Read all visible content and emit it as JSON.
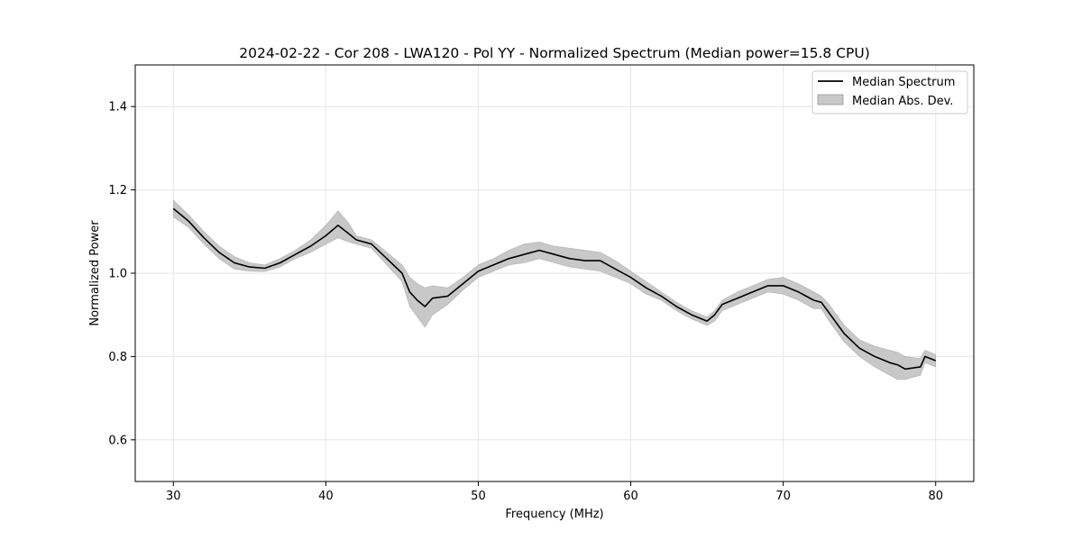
{
  "chart_data": {
    "type": "line",
    "title": "2024-02-22 - Cor 208 - LWA120 - Pol YY - Normalized Spectrum (Median power=15.8 CPU)",
    "xlabel": "Frequency (MHz)",
    "ylabel": "Normalized Power",
    "xlim": [
      27.5,
      82.5
    ],
    "ylim": [
      0.5,
      1.5
    ],
    "xticks": [
      30,
      40,
      50,
      60,
      70,
      80
    ],
    "yticks": [
      0.6,
      0.8,
      1.0,
      1.2,
      1.4
    ],
    "xtick_labels": [
      "30",
      "40",
      "50",
      "60",
      "70",
      "80"
    ],
    "ytick_labels": [
      "0.6",
      "0.8",
      "1.0",
      "1.2",
      "1.4"
    ],
    "grid": true,
    "legend": {
      "position": "top-right",
      "entries": [
        {
          "label": "Median Spectrum",
          "kind": "line",
          "color": "#000000"
        },
        {
          "label": "Median Abs. Dev.",
          "kind": "patch",
          "color": "#c8c8c8"
        }
      ]
    },
    "series": [
      {
        "name": "Median Spectrum",
        "color": "#000000",
        "x": [
          30,
          31,
          32,
          33,
          34,
          35,
          36,
          37,
          38,
          39,
          40,
          40.8,
          41.5,
          42,
          43,
          44,
          45,
          45.5,
          46,
          46.5,
          47,
          48,
          49,
          50,
          51,
          52,
          53,
          54,
          55,
          56,
          57,
          58,
          59,
          60,
          61,
          62,
          63,
          64,
          65,
          65.5,
          66,
          67,
          68,
          69,
          70,
          71,
          72,
          72.5,
          73,
          74,
          75,
          76,
          77,
          77.5,
          78,
          79,
          79.3,
          80
        ],
        "y": [
          1.155,
          1.125,
          1.085,
          1.05,
          1.025,
          1.015,
          1.012,
          1.025,
          1.045,
          1.065,
          1.09,
          1.115,
          1.095,
          1.08,
          1.07,
          1.035,
          1.0,
          0.955,
          0.935,
          0.92,
          0.94,
          0.945,
          0.975,
          1.005,
          1.02,
          1.035,
          1.045,
          1.055,
          1.045,
          1.035,
          1.03,
          1.03,
          1.01,
          0.99,
          0.965,
          0.945,
          0.92,
          0.9,
          0.885,
          0.9,
          0.925,
          0.94,
          0.955,
          0.97,
          0.97,
          0.955,
          0.935,
          0.93,
          0.905,
          0.855,
          0.82,
          0.8,
          0.785,
          0.78,
          0.77,
          0.775,
          0.8,
          0.79
        ]
      }
    ],
    "band": {
      "name": "Median Abs. Dev.",
      "color": "#c8c8c8",
      "upper": [
        1.175,
        1.14,
        1.1,
        1.065,
        1.04,
        1.025,
        1.02,
        1.035,
        1.055,
        1.08,
        1.115,
        1.15,
        1.12,
        1.09,
        1.08,
        1.05,
        1.02,
        0.99,
        0.975,
        0.965,
        0.97,
        0.965,
        0.99,
        1.02,
        1.035,
        1.055,
        1.07,
        1.075,
        1.065,
        1.06,
        1.055,
        1.05,
        1.03,
        1.005,
        0.98,
        0.955,
        0.93,
        0.91,
        0.895,
        0.91,
        0.935,
        0.955,
        0.97,
        0.985,
        0.99,
        0.975,
        0.955,
        0.945,
        0.925,
        0.875,
        0.84,
        0.825,
        0.815,
        0.81,
        0.8,
        0.795,
        0.815,
        0.805
      ],
      "lower": [
        1.135,
        1.11,
        1.07,
        1.035,
        1.01,
        1.005,
        1.004,
        1.015,
        1.035,
        1.05,
        1.07,
        1.085,
        1.075,
        1.07,
        1.06,
        1.02,
        0.98,
        0.92,
        0.895,
        0.87,
        0.9,
        0.925,
        0.96,
        0.99,
        1.005,
        1.02,
        1.025,
        1.035,
        1.025,
        1.015,
        1.01,
        1.005,
        0.99,
        0.975,
        0.95,
        0.935,
        0.91,
        0.89,
        0.875,
        0.885,
        0.91,
        0.925,
        0.94,
        0.955,
        0.95,
        0.935,
        0.915,
        0.915,
        0.885,
        0.835,
        0.8,
        0.775,
        0.755,
        0.745,
        0.745,
        0.755,
        0.785,
        0.775
      ]
    }
  }
}
